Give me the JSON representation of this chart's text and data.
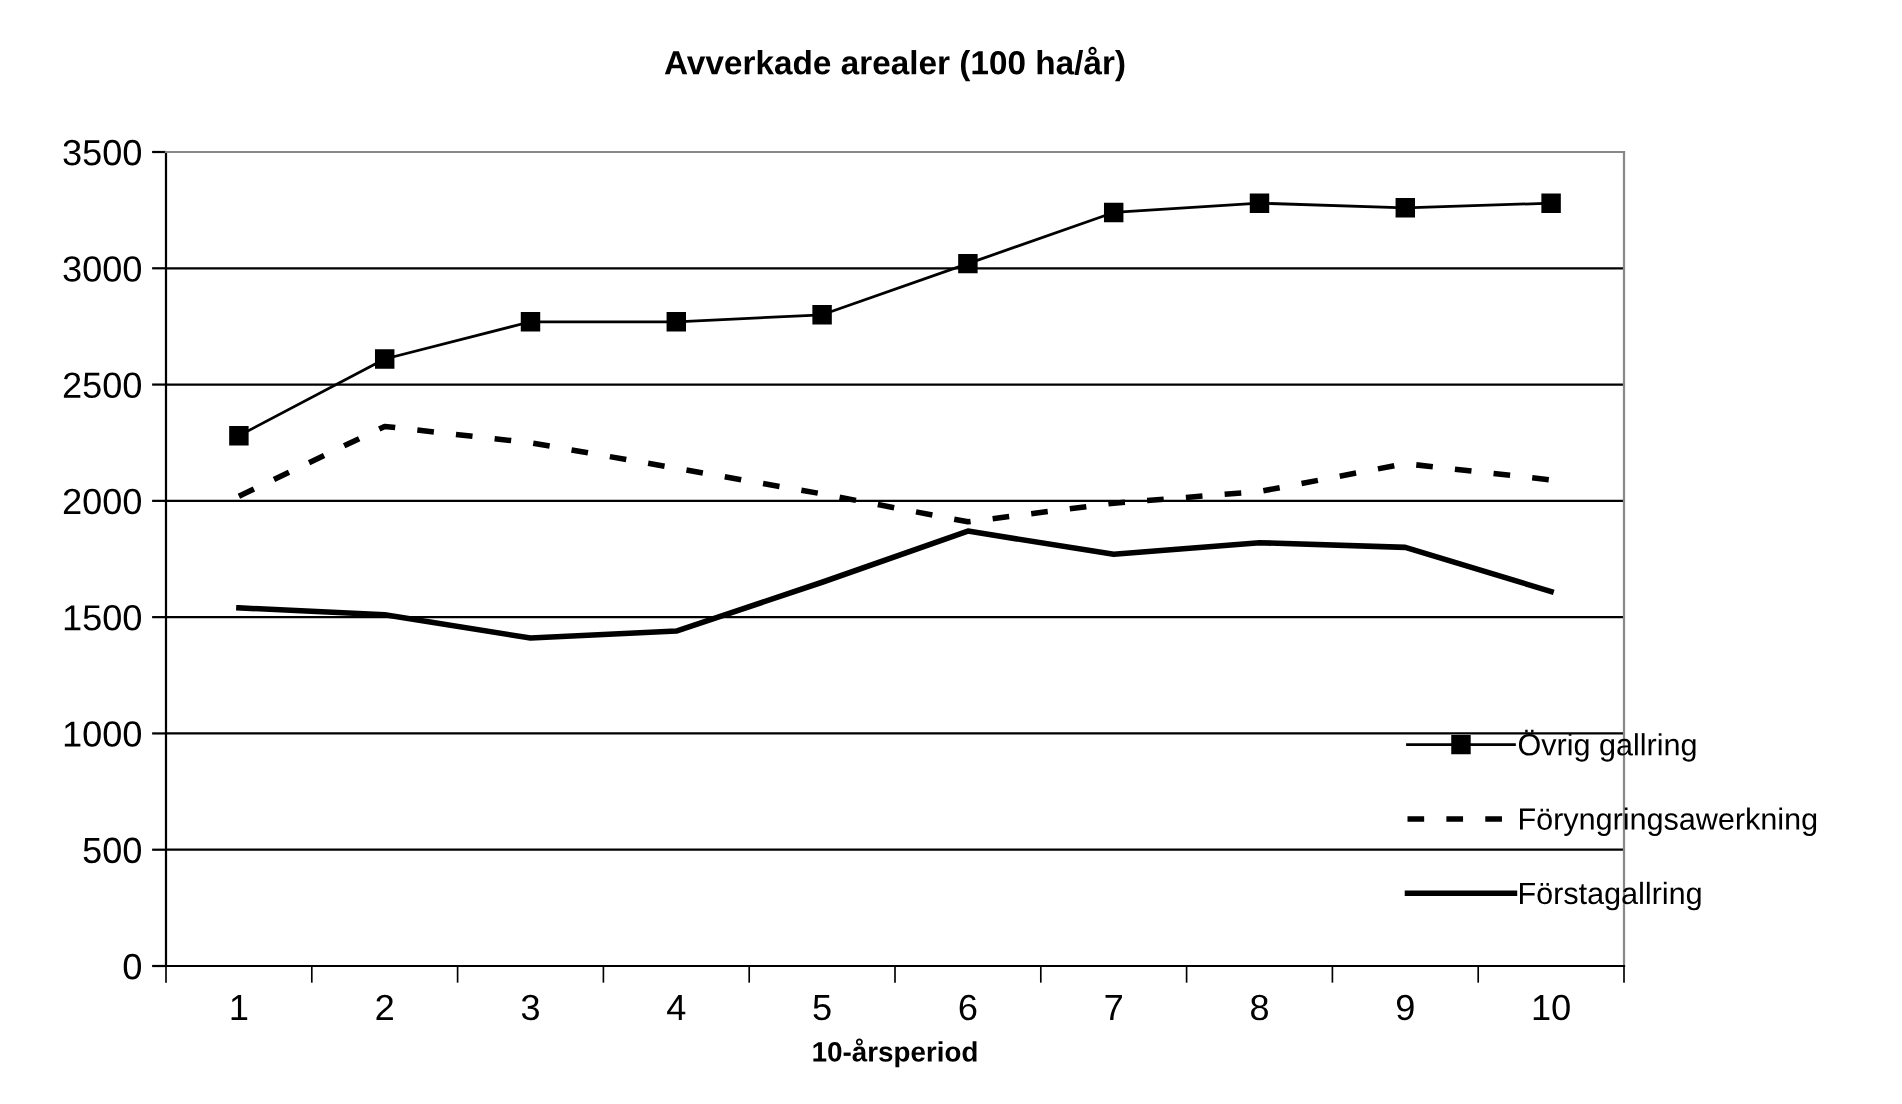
{
  "chart_data": {
    "type": "line",
    "title": "Avverkade arealer (100 ha/år)",
    "xlabel": "10-årsperiod",
    "categories": [
      "1",
      "2",
      "3",
      "4",
      "5",
      "6",
      "7",
      "8",
      "9",
      "10"
    ],
    "series": [
      {
        "name": "Övrig gallring",
        "color": "#000000",
        "marker": "square",
        "line_style": "solid",
        "values": [
          2280,
          2610,
          2770,
          2770,
          2800,
          3020,
          3240,
          3280,
          3260,
          3280
        ]
      },
      {
        "name": "Föryngringsawerkning",
        "color": "#000000",
        "marker": "none",
        "line_style": "dashed",
        "values": [
          2020,
          2320,
          2250,
          2140,
          2030,
          1910,
          1990,
          2040,
          2160,
          2090
        ]
      },
      {
        "name": "Förstagallring",
        "color": "#000000",
        "marker": "none",
        "line_style": "solid",
        "values": [
          1540,
          1510,
          1410,
          1440,
          1650,
          1870,
          1770,
          1820,
          1800,
          1610
        ]
      }
    ],
    "ylim": [
      0,
      3500
    ],
    "yticks": [
      0,
      500,
      1000,
      1500,
      2000,
      2500,
      3000,
      3500
    ],
    "grid": "y",
    "legend": "right"
  }
}
